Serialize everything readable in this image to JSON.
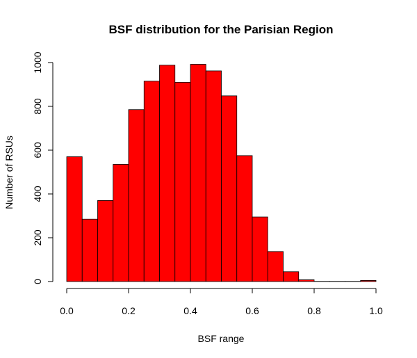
{
  "chart_data": {
    "type": "bar",
    "title": "BSF distribution for the Parisian Region",
    "xlabel": "BSF range",
    "ylabel": "Number of RSUs",
    "bin_edges": [
      0.0,
      0.05,
      0.1,
      0.15,
      0.2,
      0.25,
      0.3,
      0.35,
      0.4,
      0.45,
      0.5,
      0.55,
      0.6,
      0.65,
      0.7,
      0.75,
      0.8,
      0.85,
      0.9,
      0.95,
      1.0
    ],
    "values": [
      570,
      285,
      370,
      535,
      785,
      915,
      988,
      910,
      992,
      962,
      848,
      575,
      295,
      137,
      45,
      8,
      1,
      1,
      1,
      5
    ],
    "xlim": [
      0.0,
      1.0
    ],
    "ylim": [
      0,
      1000
    ],
    "x_ticks": [
      0.0,
      0.2,
      0.4,
      0.6,
      0.8,
      1.0
    ],
    "x_tick_labels": [
      "0.0",
      "0.2",
      "0.4",
      "0.6",
      "0.8",
      "1.0"
    ],
    "y_ticks": [
      0,
      200,
      400,
      600,
      800,
      1000
    ],
    "y_tick_labels": [
      "0",
      "200",
      "400",
      "600",
      "800",
      "1000"
    ],
    "bar_color": "#ff0000",
    "edge_color": "#000000",
    "grid": false,
    "legend": "none"
  }
}
